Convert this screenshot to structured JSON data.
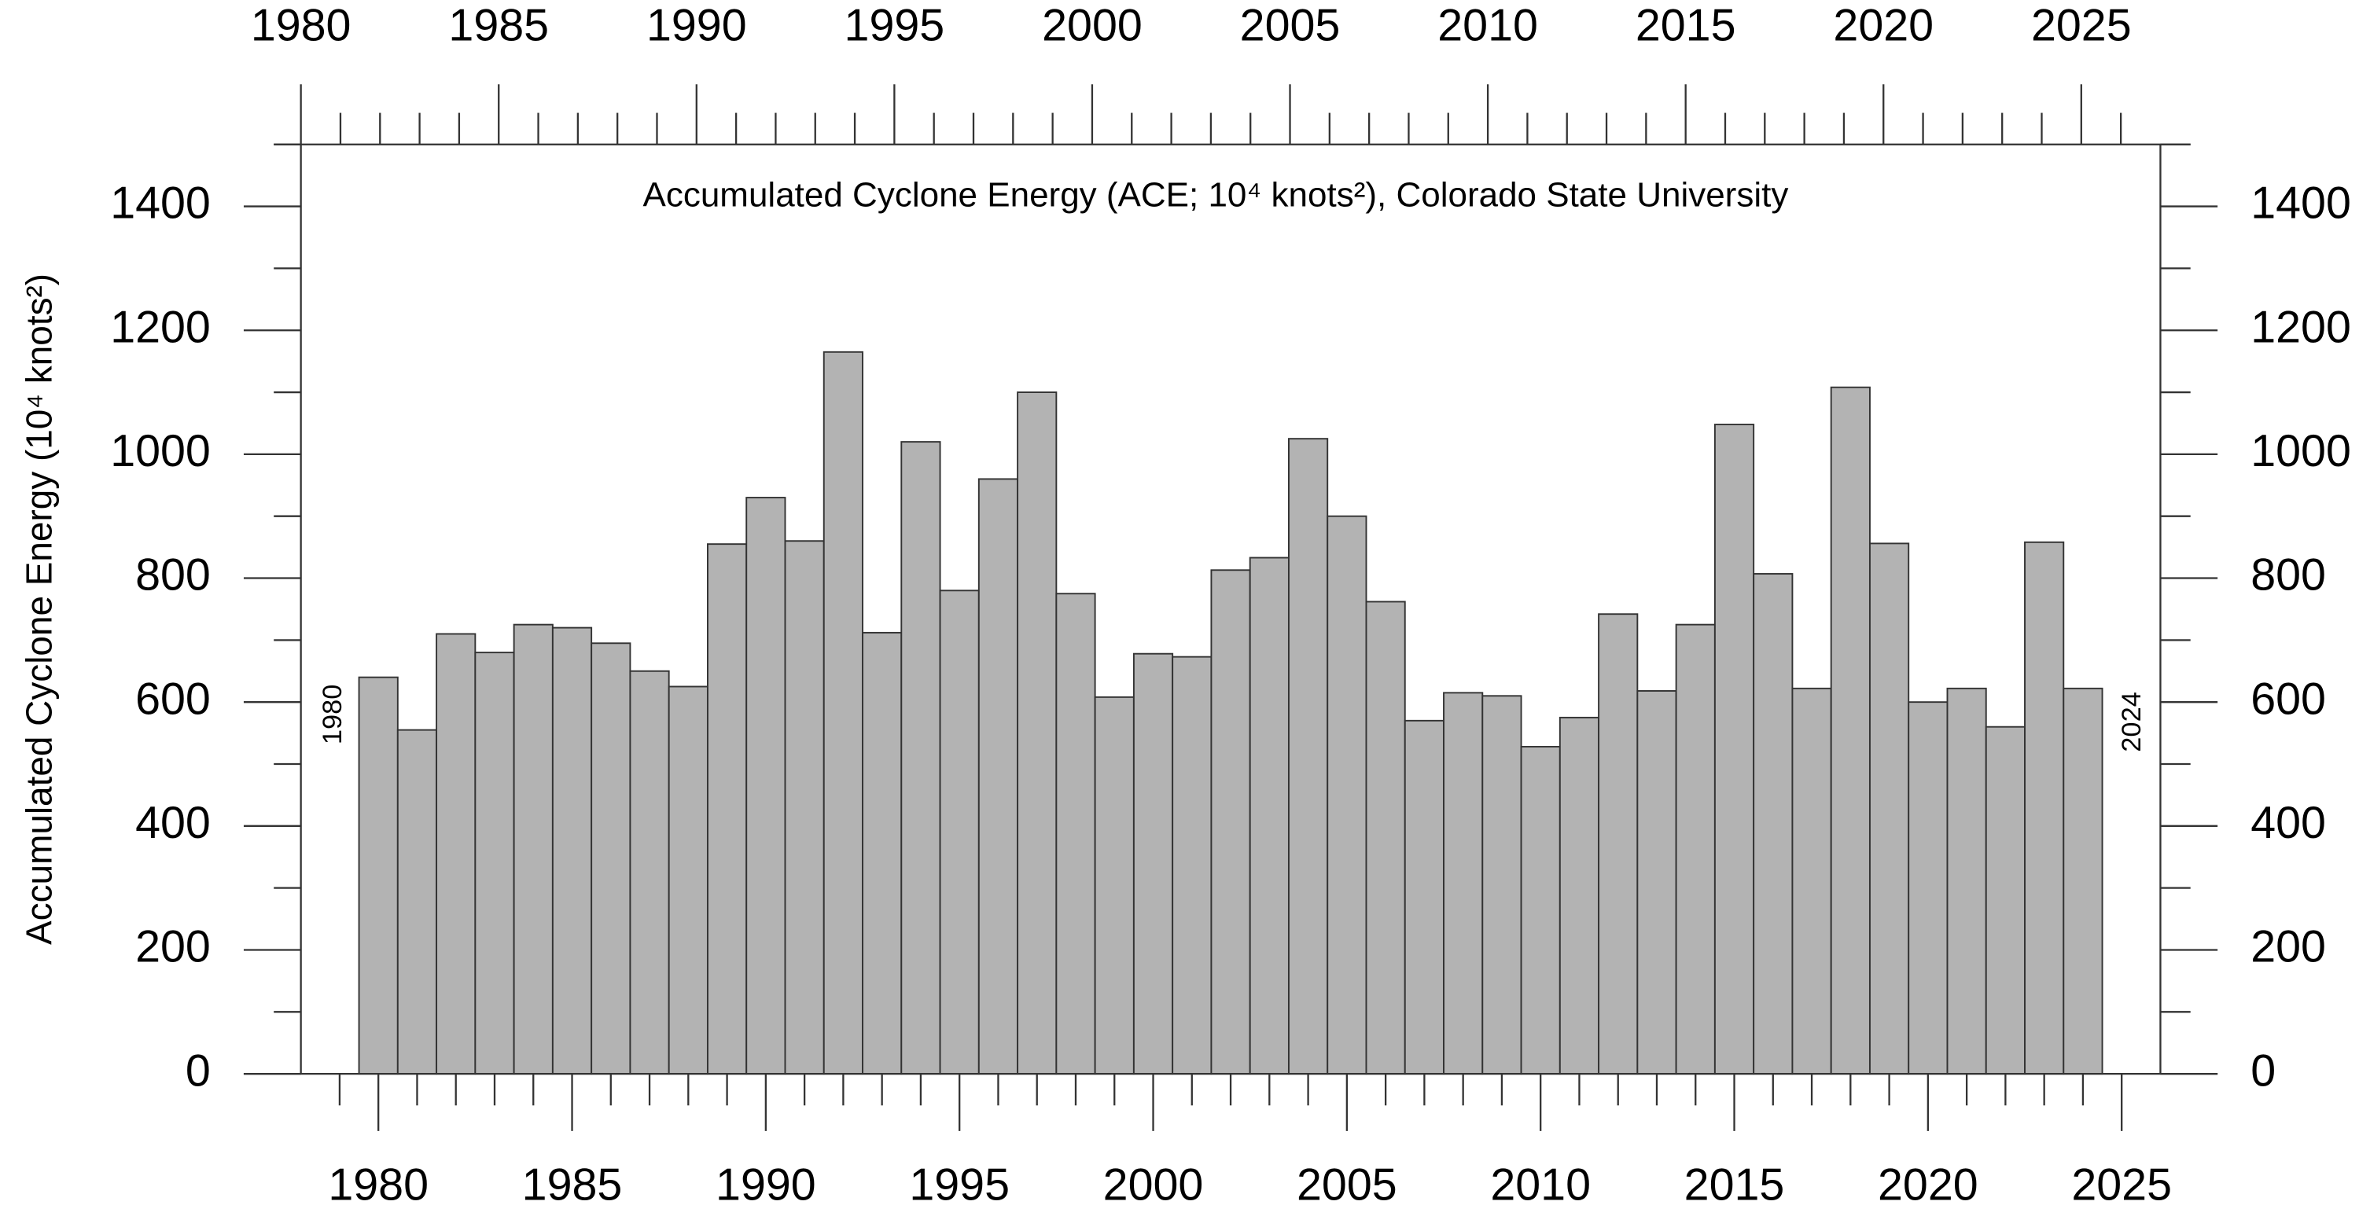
{
  "chart_data": {
    "type": "bar",
    "title": "Accumulated Cyclone Energy (ACE; 10⁴ knots²), Colorado State University",
    "y_label": "Accumulated Cyclone Energy (10⁴ knots²)",
    "annotations": [
      "1980",
      "2024"
    ],
    "x": [
      1980,
      1981,
      1982,
      1983,
      1984,
      1985,
      1986,
      1987,
      1988,
      1989,
      1990,
      1991,
      1992,
      1993,
      1994,
      1995,
      1996,
      1997,
      1998,
      1999,
      2000,
      2001,
      2002,
      2003,
      2004,
      2005,
      2006,
      2007,
      2008,
      2009,
      2010,
      2011,
      2012,
      2013,
      2014,
      2015,
      2016,
      2017,
      2018,
      2019,
      2020,
      2021,
      2022,
      2023,
      2024
    ],
    "values": [
      640,
      555,
      710,
      680,
      725,
      720,
      695,
      650,
      625,
      855,
      930,
      860,
      1165,
      712,
      1020,
      780,
      960,
      1100,
      775,
      608,
      678,
      673,
      813,
      833,
      1025,
      900,
      762,
      570,
      615,
      610,
      528,
      575,
      742,
      618,
      725,
      1048,
      807,
      622,
      1108,
      856,
      600,
      622,
      560,
      858,
      622
    ],
    "color": "#b3b3b3",
    "xlim": [
      1978,
      2026
    ],
    "xticks": [
      1980,
      1985,
      1990,
      1995,
      2000,
      2005,
      2010,
      2015,
      2020,
      2025
    ],
    "xticks_minor": [
      1979,
      1981,
      1982,
      1983,
      1984,
      1986,
      1987,
      1988,
      1989,
      1991,
      1992,
      1993,
      1994,
      1996,
      1997,
      1998,
      1999,
      2001,
      2002,
      2003,
      2004,
      2006,
      2007,
      2008,
      2009,
      2011,
      2012,
      2013,
      2014,
      2016,
      2017,
      2018,
      2019,
      2021,
      2022,
      2023,
      2024
    ],
    "x2lim": [
      1980,
      2027
    ],
    "x2ticks": [
      1980,
      1985,
      1990,
      1995,
      2000,
      2005,
      2010,
      2015,
      2020,
      2025
    ],
    "x2ticks_minor": [
      1981,
      1982,
      1983,
      1984,
      1986,
      1987,
      1988,
      1989,
      1991,
      1992,
      1993,
      1994,
      1996,
      1997,
      1998,
      1999,
      2001,
      2002,
      2003,
      2004,
      2006,
      2007,
      2008,
      2009,
      2011,
      2012,
      2013,
      2014,
      2016,
      2017,
      2018,
      2019,
      2021,
      2022,
      2023,
      2024,
      2026
    ],
    "ylim": [
      0,
      1500
    ],
    "yticks": [
      0,
      200,
      400,
      600,
      800,
      1000,
      1200,
      1400
    ],
    "yticks_minor": [
      100,
      300,
      500,
      700,
      900,
      1100,
      1300,
      1500
    ]
  }
}
